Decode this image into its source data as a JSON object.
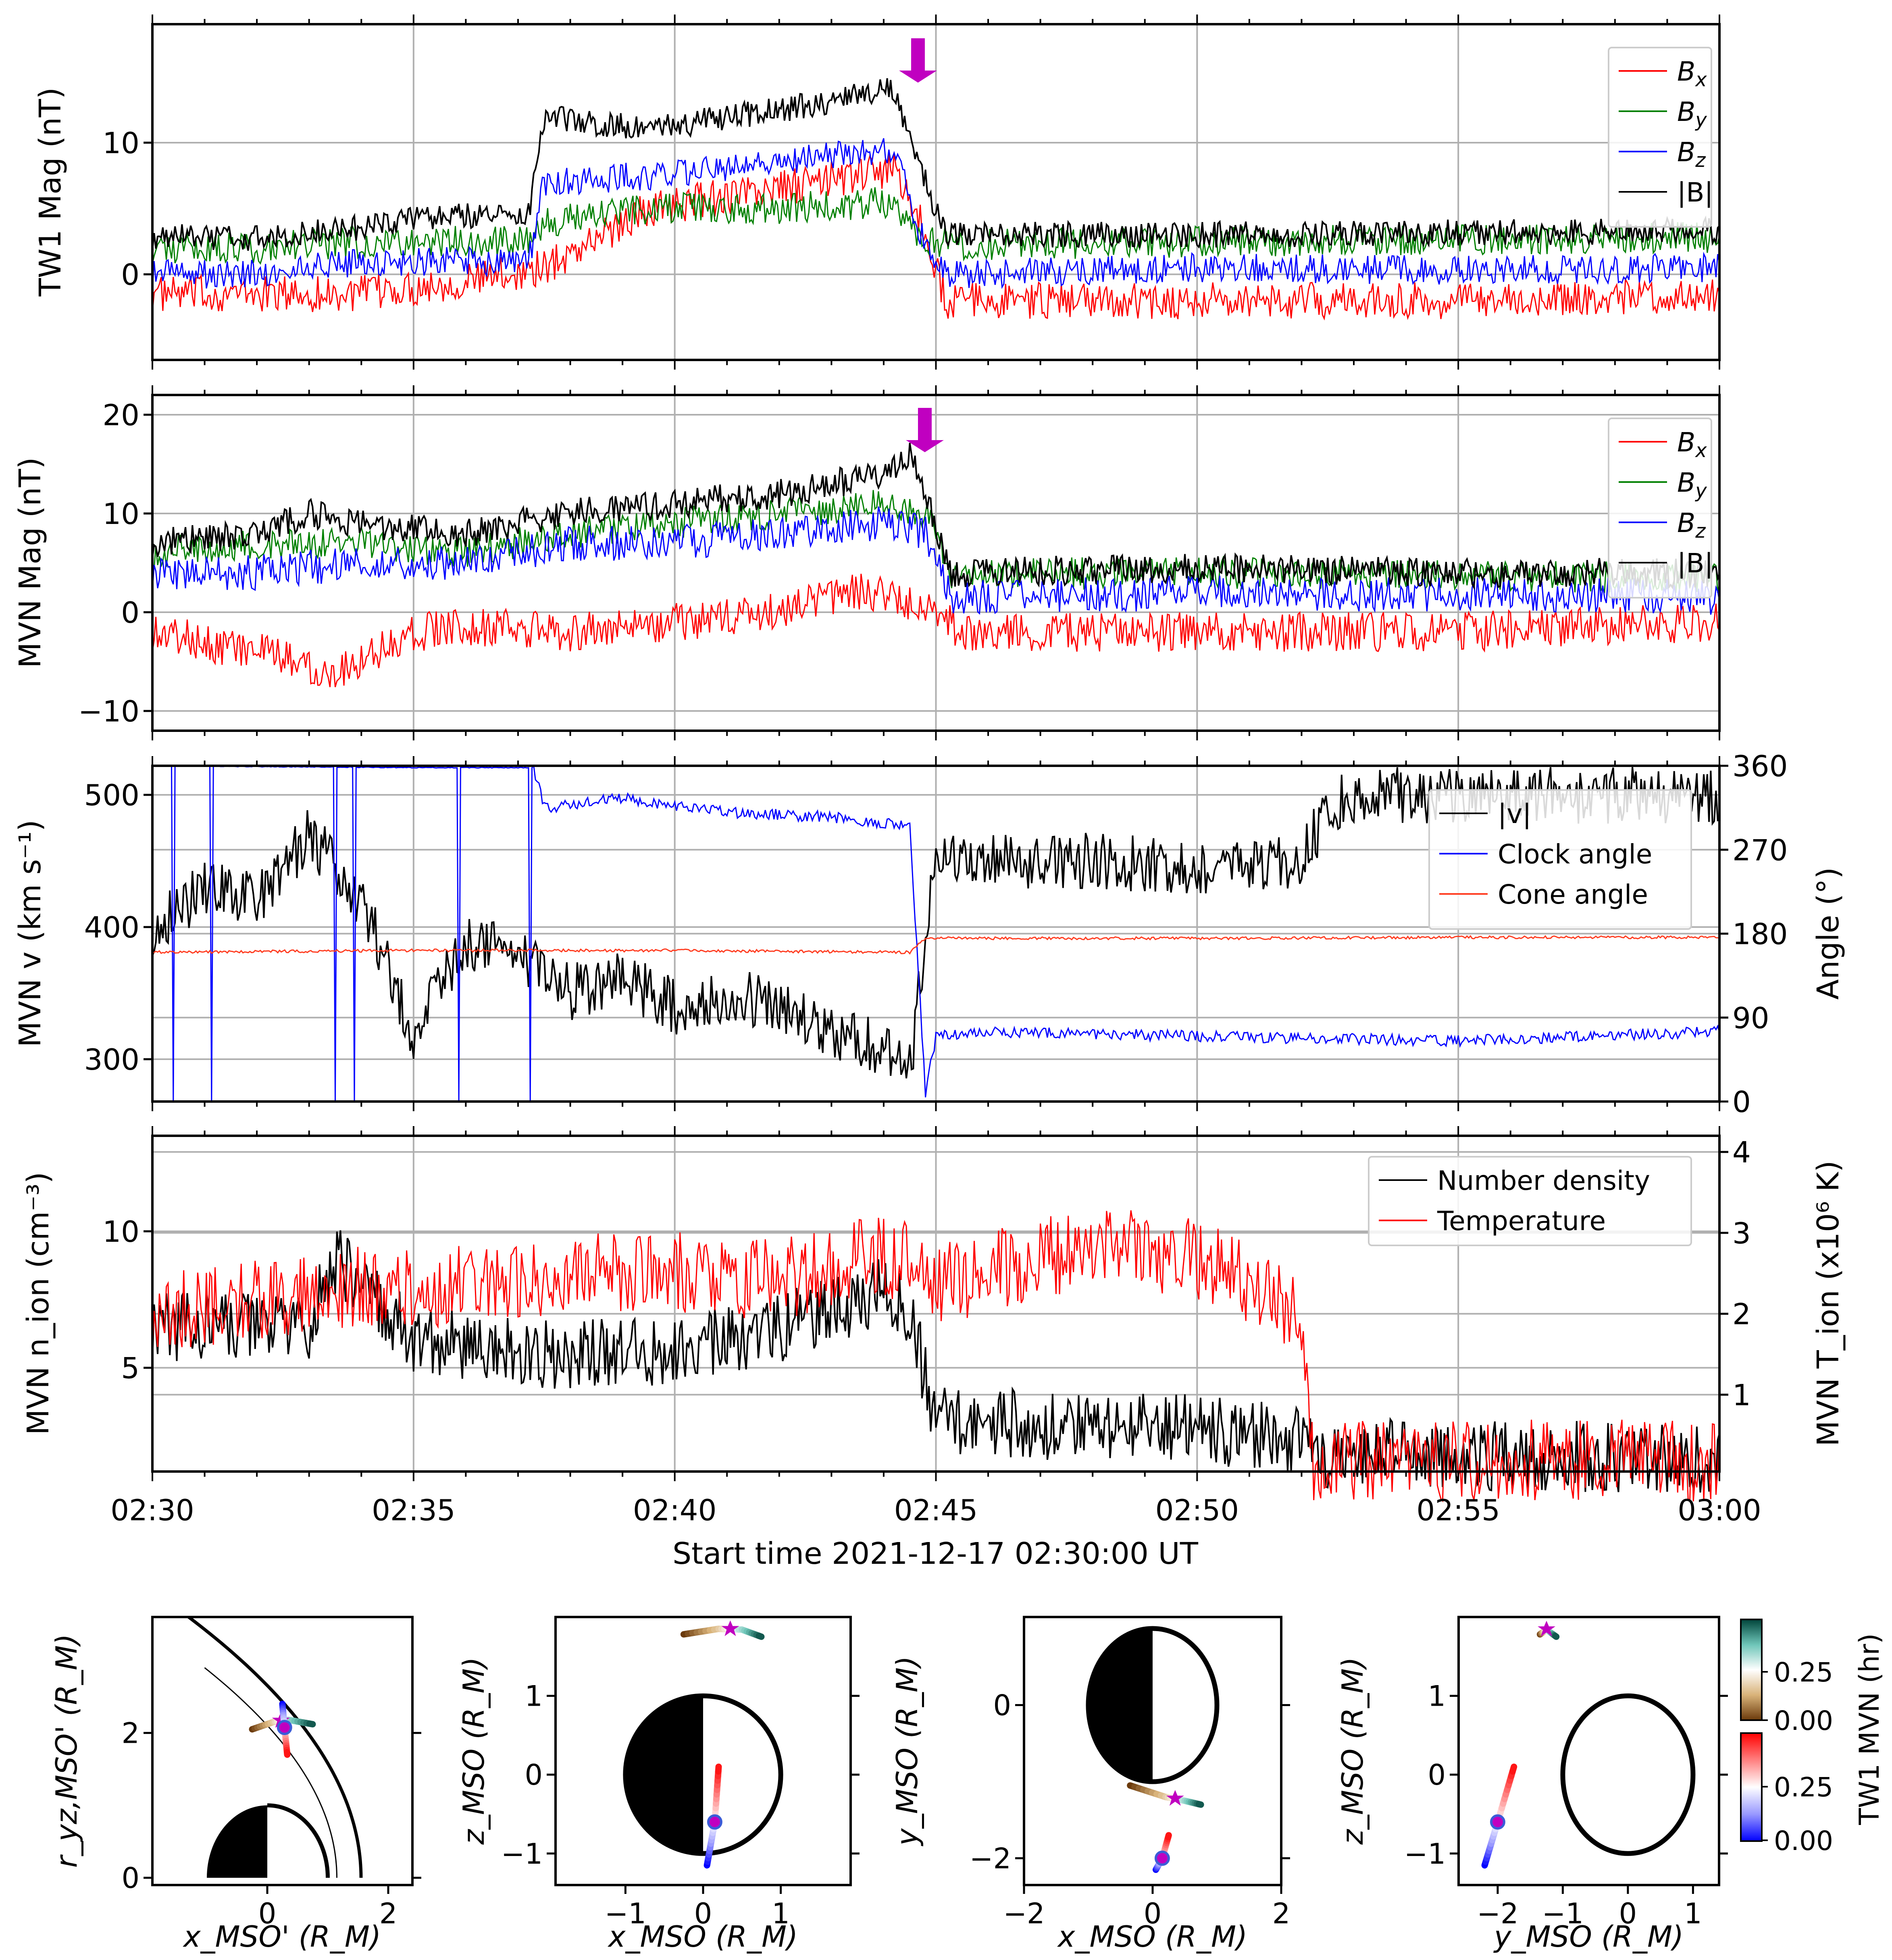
{
  "figure": {
    "xlabel": "Start time 2021-12-17 02:30:00 UT",
    "time_ticks": [
      "02:30",
      "02:35",
      "02:40",
      "02:45",
      "02:50",
      "02:55",
      "03:00"
    ],
    "shock_marker_minute": 14.8
  },
  "chart_data": [
    {
      "type": "line",
      "id": "tw1",
      "ylabel": "TW1 Mag (nT)",
      "xlim": [
        0,
        30
      ],
      "ylim": [
        -6.5,
        19
      ],
      "yticks": [
        0,
        10
      ],
      "legend": [
        "B",
        "B",
        "B",
        "|B|"
      ],
      "legend_sub": [
        "x",
        "y",
        "z",
        ""
      ],
      "legend_location": "top-right",
      "series": [
        {
          "name": "Bx",
          "color": "#ff0000",
          "x": [
            0,
            2,
            4,
            6,
            7.5,
            9.5,
            12,
            14.2,
            14.7,
            15.2,
            20,
            25,
            30
          ],
          "y": [
            -1.5,
            -1.5,
            -1.5,
            -0.5,
            0.5,
            5,
            6.5,
            8,
            4,
            -2,
            -2,
            -2,
            -1.5
          ]
        },
        {
          "name": "By",
          "color": "#008000",
          "x": [
            0,
            2,
            4,
            7.2,
            7.5,
            9.5,
            12,
            14.2,
            14.7,
            15.2,
            20,
            25,
            30
          ],
          "y": [
            2,
            2,
            2.5,
            2.5,
            4,
            5,
            5,
            5.5,
            3,
            2.2,
            2.5,
            2.7,
            2.8
          ]
        },
        {
          "name": "Bz",
          "color": "#0000ff",
          "x": [
            0,
            2,
            4,
            7.2,
            7.5,
            9.5,
            12,
            14.2,
            14.7,
            15.2,
            20,
            25,
            30
          ],
          "y": [
            0,
            0,
            1,
            1,
            7,
            7.5,
            8.5,
            9.5,
            3,
            0,
            0.5,
            0.3,
            0.5
          ]
        },
        {
          "name": "|B|",
          "color": "#000000",
          "x": [
            0,
            2,
            4,
            5.5,
            7.2,
            7.5,
            9.5,
            12,
            14.2,
            14.7,
            15.2,
            20,
            25,
            30
          ],
          "y": [
            2.8,
            2.8,
            3.5,
            4.5,
            4.5,
            12,
            11,
            12.5,
            14,
            8,
            3,
            3,
            3.2,
            3.3
          ]
        }
      ]
    },
    {
      "type": "line",
      "id": "mvn_mag",
      "ylabel": "MVN Mag (nT)",
      "xlim": [
        0,
        30
      ],
      "ylim": [
        -12,
        22
      ],
      "yticks": [
        -10,
        0,
        10,
        20
      ],
      "legend": [
        "B",
        "B",
        "B",
        "|B|"
      ],
      "legend_sub": [
        "x",
        "y",
        "z",
        ""
      ],
      "legend_location": "top-right",
      "series": [
        {
          "name": "Bx",
          "color": "#ff0000",
          "x": [
            0,
            2,
            3.5,
            5,
            6,
            8,
            10,
            12,
            13.5,
            14.8,
            15.5,
            20,
            25,
            30
          ],
          "y": [
            -2,
            -4,
            -6,
            -2,
            -1.5,
            -2,
            -1,
            0,
            2,
            1,
            -2,
            -2,
            -2,
            -1
          ]
        },
        {
          "name": "By",
          "color": "#008000",
          "x": [
            0,
            2,
            4,
            6,
            8,
            10,
            12,
            14,
            14.8,
            15.3,
            20,
            25,
            30
          ],
          "y": [
            6,
            7,
            7,
            6,
            8,
            9,
            10,
            11,
            10,
            4,
            4,
            3.7,
            3.5
          ]
        },
        {
          "name": "Bz",
          "color": "#0000ff",
          "x": [
            0,
            2,
            4,
            6,
            8,
            10,
            12,
            14,
            14.8,
            15.3,
            20,
            25,
            30
          ],
          "y": [
            4,
            4,
            5,
            5,
            7,
            7,
            8,
            9,
            8,
            1.5,
            2,
            1.8,
            1.5
          ]
        },
        {
          "name": "|B|",
          "color": "#000000",
          "x": [
            0,
            2,
            3,
            4,
            6,
            8,
            10,
            12,
            14,
            14.5,
            14.8,
            15.3,
            20,
            25,
            30
          ],
          "y": [
            7,
            8,
            10,
            9,
            8,
            10,
            11,
            12,
            14,
            16,
            12,
            4,
            4.5,
            4,
            4
          ]
        }
      ]
    },
    {
      "type": "line",
      "id": "mvn_v",
      "ylabel": "MVN v (km s⁻¹)",
      "ylabel_right": "Angle (°)",
      "xlim": [
        0,
        30
      ],
      "ylim": [
        268,
        522
      ],
      "yticks": [
        300,
        400,
        500
      ],
      "ylim_right": [
        0,
        360
      ],
      "yticks_right": [
        0,
        90,
        180,
        270,
        360
      ],
      "legend": [
        "|v|",
        "Clock angle",
        "Cone angle"
      ],
      "legend_location": "upper-right",
      "series": [
        {
          "name": "|v|",
          "axis": "left",
          "color": "#000000",
          "x": [
            0,
            1,
            2,
            3,
            4,
            5,
            6,
            7,
            8,
            9,
            10,
            11,
            12,
            13,
            14,
            14.5,
            15,
            16,
            18,
            20,
            22,
            22.5,
            23,
            25,
            27,
            30
          ],
          "y": [
            400,
            430,
            420,
            470,
            420,
            320,
            390,
            380,
            350,
            360,
            340,
            350,
            340,
            320,
            310,
            290,
            460,
            450,
            450,
            445,
            450,
            490,
            500,
            500,
            500,
            500
          ]
        },
        {
          "name": "Clock angle",
          "axis": "right",
          "color": "#0000ff",
          "x": [
            0,
            5,
            7.3,
            7.5,
            9,
            11,
            13,
            14.5,
            14.8,
            15,
            16,
            20,
            25,
            30
          ],
          "y": [
            360,
            358,
            358,
            315,
            325,
            310,
            305,
            295,
            10,
            70,
            75,
            70,
            65,
            75
          ]
        },
        {
          "name": "Cone angle",
          "axis": "right",
          "color": "#ff3b1f",
          "x": [
            0,
            5,
            10,
            14.5,
            14.8,
            15,
            20,
            25,
            30
          ],
          "y": [
            160,
            162,
            162,
            160,
            175,
            175,
            175,
            176,
            176
          ]
        }
      ]
    },
    {
      "type": "line",
      "id": "mvn_n",
      "ylabel": "MVN n_ion (cm⁻³)",
      "ylabel_right": "MVN T_ion (x10⁶ K)",
      "xlim": [
        0,
        30
      ],
      "ylim": [
        1.2,
        13.5
      ],
      "yticks": [
        5,
        10
      ],
      "ylim_right": [
        0.05,
        4.2
      ],
      "yticks_right": [
        1,
        2,
        3,
        4
      ],
      "legend": [
        "Number density",
        "Temperature"
      ],
      "legend_location": "upper-right",
      "series": [
        {
          "name": "Number density",
          "axis": "left",
          "color": "#000000",
          "x": [
            0,
            2,
            3,
            3.5,
            5,
            7,
            9,
            11,
            13,
            14,
            14.5,
            15,
            20,
            22,
            22.5,
            25,
            30
          ],
          "y": [
            6.5,
            6.5,
            6.5,
            9,
            6,
            5.5,
            5.5,
            6,
            7,
            8,
            7,
            3,
            2.8,
            2.4,
            1.9,
            1.8,
            1.7
          ]
        },
        {
          "name": "Temperature",
          "axis": "left",
          "color": "#ff0000",
          "x": [
            0,
            2,
            4,
            6,
            8,
            10,
            12,
            13.5,
            14.5,
            15,
            18,
            20,
            22,
            22.2,
            25,
            30
          ],
          "y": [
            7,
            7.5,
            8,
            8,
            8.5,
            8.5,
            8.2,
            9,
            9,
            8,
            9.5,
            9,
            7,
            1.6,
            1.6,
            1.6
          ]
        }
      ]
    },
    {
      "type": "line",
      "id": "orbit_xr",
      "xlabel": "x_MSO' (R_M)",
      "ylabel": "r_yz,MSO' (R_M)",
      "xlim": [
        -1.9,
        2.4
      ],
      "ylim": [
        -0.1,
        3.6
      ],
      "xticks": [
        0,
        2
      ],
      "yticks": [
        0,
        2
      ],
      "series": [
        {
          "name": "TW1",
          "colormap": "brown-teal",
          "x": [
            -0.25,
            0.1,
            0.35,
            0.75
          ],
          "y": [
            2.05,
            2.15,
            2.18,
            2.12
          ]
        },
        {
          "name": "MVN",
          "colormap": "red-blue",
          "x": [
            0.25,
            0.27,
            0.3,
            0.33
          ],
          "y": [
            2.4,
            2.2,
            1.95,
            1.7
          ]
        }
      ]
    },
    {
      "type": "line",
      "id": "orbit_xz",
      "xlabel": "x_MSO (R_M)",
      "ylabel": "z_MSO (R_M)",
      "xlim": [
        -1.9,
        1.9
      ],
      "ylim": [
        -1.4,
        2
      ],
      "xticks": [
        -1,
        0,
        1
      ],
      "yticks": [
        -1,
        0,
        1
      ],
      "series": [
        {
          "name": "TW1",
          "colormap": "brown-teal",
          "x": [
            -0.25,
            0.2,
            0.5,
            0.75
          ],
          "y": [
            1.78,
            1.85,
            1.84,
            1.75
          ]
        },
        {
          "name": "MVN",
          "colormap": "red-blue",
          "x": [
            0.05,
            0.15,
            0.2
          ],
          "y": [
            -1.15,
            -0.6,
            0.1
          ]
        }
      ]
    },
    {
      "type": "line",
      "id": "orbit_xy",
      "xlabel": "x_MSO (R_M)",
      "ylabel": "y_MSO (R_M)",
      "xlim": [
        -2,
        2
      ],
      "ylim": [
        -2.35,
        1.15
      ],
      "xticks": [
        -2,
        0,
        2
      ],
      "yticks": [
        -2,
        0
      ],
      "series": [
        {
          "name": "TW1",
          "colormap": "brown-teal",
          "x": [
            -0.35,
            0.2,
            0.5,
            0.75
          ],
          "y": [
            -1.05,
            -1.2,
            -1.25,
            -1.3
          ]
        },
        {
          "name": "MVN",
          "colormap": "red-blue",
          "x": [
            0.05,
            0.15,
            0.25
          ],
          "y": [
            -2.15,
            -2.0,
            -1.7
          ]
        }
      ]
    },
    {
      "type": "line",
      "id": "orbit_yz",
      "xlabel": "y_MSO (R_M)",
      "ylabel": "z_MSO (R_M)",
      "xlim": [
        -2.6,
        1.4
      ],
      "ylim": [
        -1.4,
        2
      ],
      "xticks": [
        -2,
        -1,
        0,
        1
      ],
      "yticks": [
        -1,
        0,
        1
      ],
      "series": [
        {
          "name": "TW1",
          "colormap": "brown-teal",
          "x": [
            -1.35,
            -1.25,
            -1.1
          ],
          "y": [
            1.78,
            1.84,
            1.75
          ]
        },
        {
          "name": "MVN",
          "colormap": "red-blue",
          "x": [
            -2.2,
            -2.0,
            -1.75
          ],
          "y": [
            -1.15,
            -0.6,
            0.1
          ]
        }
      ]
    }
  ],
  "colorbars": {
    "label": "TW1 MVN (hr)",
    "tw1_ticks": [
      "0.25",
      "0.00"
    ],
    "mvn_ticks": [
      "0.25",
      "0.00"
    ],
    "tw1_colors": [
      "#6b3a0b",
      "#d9b37a",
      "#ffffff",
      "#6ec5b8",
      "#00443a"
    ],
    "mvn_colors": [
      "#0000ff",
      "#9999ff",
      "#ffffff",
      "#ff8080",
      "#ff0000"
    ]
  }
}
